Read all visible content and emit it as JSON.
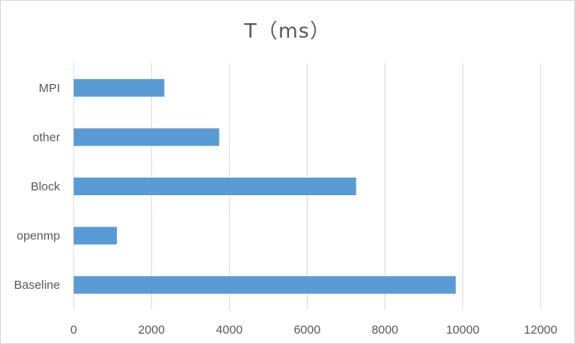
{
  "chart_data": {
    "type": "bar",
    "orientation": "horizontal",
    "title": "T（ms）",
    "categories": [
      "MPI",
      "other",
      "Block",
      "openmp",
      "Baseline"
    ],
    "values": [
      2330,
      3740,
      7260,
      1110,
      9820
    ],
    "xlim": [
      0,
      12000
    ],
    "xticks": [
      0,
      2000,
      4000,
      6000,
      8000,
      10000,
      12000
    ],
    "grid": "vertical",
    "legend": "none",
    "bar_color": "#5b9bd5",
    "grid_color": "#d9d9d9"
  }
}
